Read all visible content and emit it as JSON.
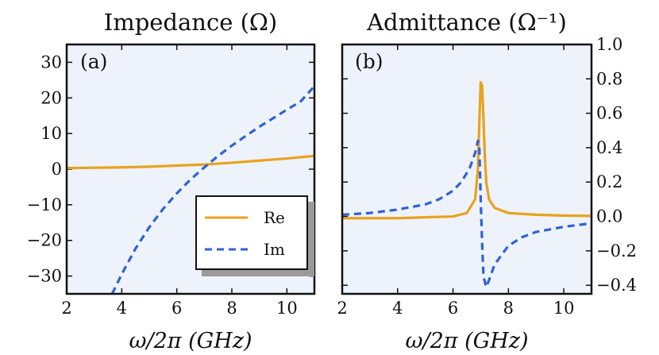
{
  "chart_data": [
    {
      "type": "line",
      "panel_label": "(a)",
      "title": "Impedance (Ω)",
      "xlabel": "ω/2π  (GHz)",
      "ylabel": "",
      "xlim": [
        2,
        11
      ],
      "ylim": [
        -35,
        35
      ],
      "xticks": [
        2,
        4,
        6,
        8,
        10
      ],
      "xtick_labels": [
        "2",
        "4",
        "6",
        "8",
        "10"
      ],
      "yticks": [
        30,
        20,
        10,
        0,
        -10,
        -20,
        -30
      ],
      "ytick_labels": [
        "30",
        "20",
        "10",
        "0",
        "−10",
        "−20",
        "−30"
      ],
      "series": [
        {
          "name": "Re",
          "color": "#e8a21f",
          "style": "solid",
          "x": [
            2,
            3,
            4,
            5,
            6,
            7,
            8,
            9,
            10,
            11
          ],
          "y": [
            0.3,
            0.4,
            0.5,
            0.7,
            1.0,
            1.3,
            1.8,
            2.4,
            3.0,
            3.7
          ]
        },
        {
          "name": "Im",
          "color": "#2e62d6",
          "style": "dashed",
          "x": [
            3.65,
            4.0,
            4.5,
            5.0,
            5.5,
            6.0,
            6.5,
            7.0,
            7.5,
            8.0,
            8.5,
            9.0,
            9.5,
            10.0,
            10.5,
            11.0
          ],
          "y": [
            -35,
            -29.5,
            -22.3,
            -16.3,
            -11.2,
            -6.8,
            -2.9,
            0.5,
            3.7,
            6.6,
            9.3,
            11.9,
            14.3,
            16.7,
            19.0,
            23.3
          ]
        }
      ],
      "legend": {
        "placement": "bottom-right",
        "entries": [
          "Re",
          "Im"
        ]
      }
    },
    {
      "type": "line",
      "panel_label": "(b)",
      "title": "Admittance (Ω⁻¹)",
      "xlabel": "ω/2π  (GHz)",
      "ylabel": "",
      "xlim": [
        2,
        11
      ],
      "ylim": [
        -0.45,
        1.0
      ],
      "xticks": [
        2,
        4,
        6,
        8,
        10
      ],
      "xtick_labels": [
        "2",
        "4",
        "6",
        "8",
        "10"
      ],
      "yticks": [
        1.0,
        0.8,
        0.6,
        0.4,
        0.2,
        0.0,
        -0.2,
        -0.4
      ],
      "ytick_labels": [
        "1.0",
        "0.8",
        "0.6",
        "0.4",
        "0.2",
        "0.0",
        "−0.2",
        "−0.4"
      ],
      "y_axis_side": "right",
      "series": [
        {
          "name": "Re",
          "color": "#e8a21f",
          "style": "solid",
          "x": [
            2,
            4,
            5,
            6,
            6.5,
            6.8,
            6.9,
            6.95,
            7.0,
            7.05,
            7.1,
            7.15,
            7.2,
            7.3,
            7.5,
            8.0,
            9.0,
            10.0,
            11.0
          ],
          "y": [
            -0.01,
            -0.01,
            -0.005,
            0.0,
            0.02,
            0.1,
            0.28,
            0.55,
            0.78,
            0.76,
            0.57,
            0.35,
            0.2,
            0.1,
            0.05,
            0.02,
            0.01,
            0.005,
            0.003
          ]
        },
        {
          "name": "Im",
          "color": "#2e62d6",
          "style": "dashed",
          "x": [
            2,
            3,
            4,
            5,
            5.5,
            6.0,
            6.3,
            6.6,
            6.8,
            6.9,
            6.95,
            7.0,
            7.05,
            7.1,
            7.2,
            7.3,
            7.5,
            8.0,
            8.5,
            9,
            10,
            11
          ],
          "y": [
            0.01,
            0.02,
            0.04,
            0.07,
            0.1,
            0.15,
            0.2,
            0.28,
            0.37,
            0.44,
            0.4,
            0.1,
            -0.15,
            -0.35,
            -0.41,
            -0.37,
            -0.28,
            -0.17,
            -0.12,
            -0.09,
            -0.06,
            -0.04
          ]
        }
      ]
    }
  ]
}
